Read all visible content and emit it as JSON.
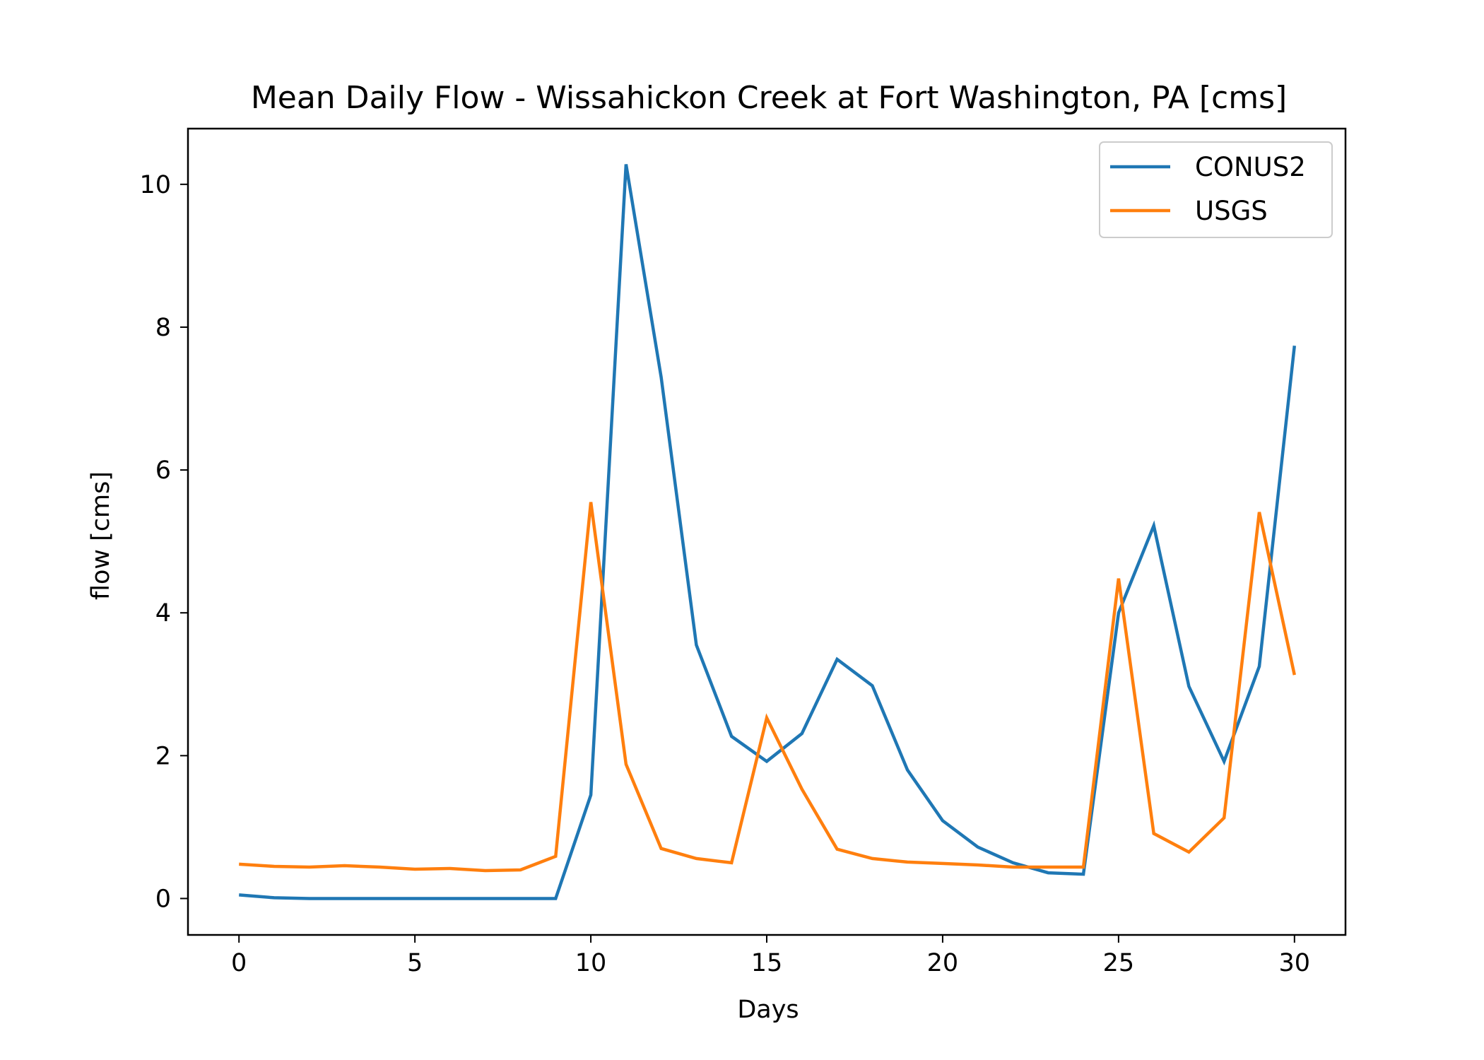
{
  "chart_data": {
    "type": "line",
    "title": "Mean Daily Flow - Wissahickon Creek at Fort Washington, PA [cms]",
    "xlabel": "Days",
    "ylabel": "flow [cms]",
    "xlim": [
      -1.45,
      31.45
    ],
    "ylim": [
      -0.51,
      10.78
    ],
    "xticks": [
      0,
      5,
      10,
      15,
      20,
      25,
      30
    ],
    "yticks": [
      0,
      2,
      4,
      6,
      8,
      10
    ],
    "grid": false,
    "legend_position": "top-right",
    "x": [
      0,
      1,
      2,
      3,
      4,
      5,
      6,
      7,
      8,
      9,
      10,
      11,
      12,
      13,
      14,
      15,
      16,
      17,
      18,
      19,
      20,
      21,
      22,
      23,
      24,
      25,
      26,
      27,
      28,
      29,
      30
    ],
    "series": [
      {
        "name": "CONUS2",
        "color": "#1f77b4",
        "values": [
          0.05,
          0.01,
          0.0,
          0.0,
          0.0,
          0.0,
          0.0,
          0.0,
          0.0,
          0.0,
          1.45,
          10.28,
          7.3,
          3.55,
          2.27,
          1.92,
          2.31,
          3.35,
          2.98,
          1.8,
          1.09,
          0.72,
          0.5,
          0.36,
          0.34,
          4.0,
          5.22,
          2.97,
          1.92,
          3.25,
          7.74
        ]
      },
      {
        "name": "USGS",
        "color": "#ff7f0e",
        "values": [
          0.48,
          0.45,
          0.44,
          0.46,
          0.44,
          0.41,
          0.42,
          0.39,
          0.4,
          0.59,
          5.55,
          1.88,
          0.7,
          0.56,
          0.5,
          2.53,
          1.53,
          0.69,
          0.56,
          0.51,
          0.49,
          0.47,
          0.44,
          0.44,
          0.44,
          4.48,
          0.91,
          0.65,
          1.13,
          5.41,
          3.13
        ]
      }
    ]
  }
}
